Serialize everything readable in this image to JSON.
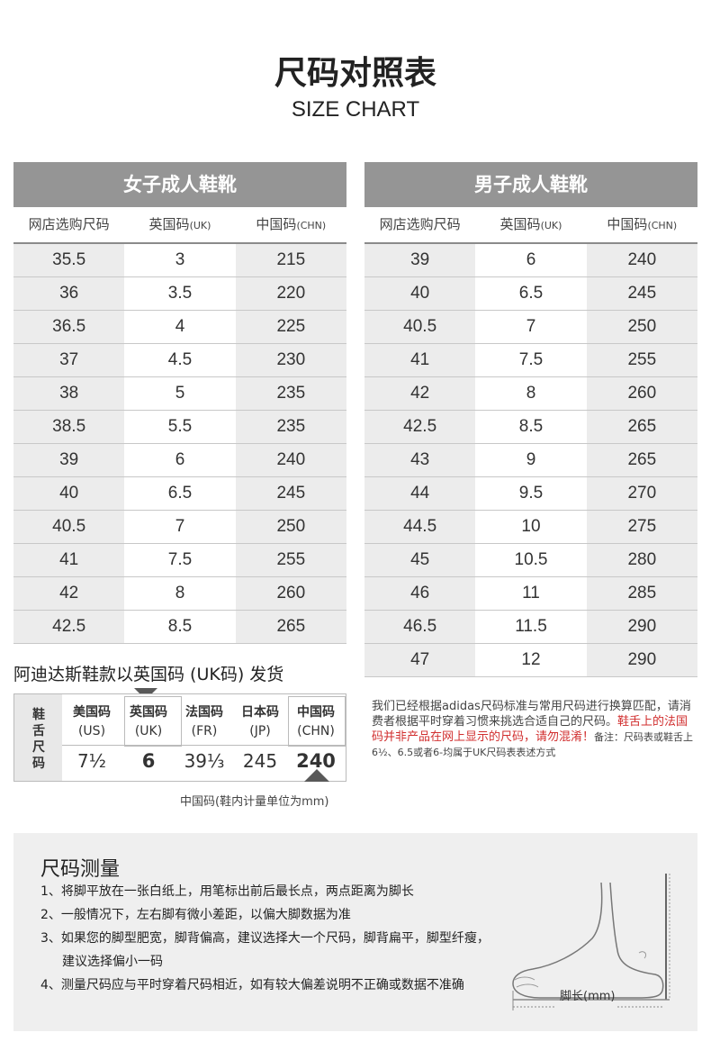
{
  "title": "尺码对照表",
  "subtitle": "SIZE CHART",
  "women": {
    "heading": "女子成人鞋靴",
    "col1": "网店选购尺码",
    "col2_main": "英国码",
    "col2_unit": "(UK)",
    "col3_main": "中国码",
    "col3_unit": "(CHN)",
    "rows": [
      [
        "35.5",
        "3",
        "215"
      ],
      [
        "36",
        "3.5",
        "220"
      ],
      [
        "36.5",
        "4",
        "225"
      ],
      [
        "37",
        "4.5",
        "230"
      ],
      [
        "38",
        "5",
        "235"
      ],
      [
        "38.5",
        "5.5",
        "235"
      ],
      [
        "39",
        "6",
        "240"
      ],
      [
        "40",
        "6.5",
        "245"
      ],
      [
        "40.5",
        "7",
        "250"
      ],
      [
        "41",
        "7.5",
        "255"
      ],
      [
        "42",
        "8",
        "260"
      ],
      [
        "42.5",
        "8.5",
        "265"
      ]
    ]
  },
  "men": {
    "heading": "男子成人鞋靴",
    "col1": "网店选购尺码",
    "col2_main": "英国码",
    "col2_unit": "(UK)",
    "col3_main": "中国码",
    "col3_unit": "(CHN)",
    "rows": [
      [
        "39",
        "6",
        "240"
      ],
      [
        "40",
        "6.5",
        "245"
      ],
      [
        "40.5",
        "7",
        "250"
      ],
      [
        "41",
        "7.5",
        "255"
      ],
      [
        "42",
        "8",
        "260"
      ],
      [
        "42.5",
        "8.5",
        "265"
      ],
      [
        "43",
        "9",
        "265"
      ],
      [
        "44",
        "9.5",
        "270"
      ],
      [
        "44.5",
        "10",
        "275"
      ],
      [
        "45",
        "10.5",
        "280"
      ],
      [
        "46",
        "11",
        "285"
      ],
      [
        "46.5",
        "11.5",
        "290"
      ],
      [
        "47",
        "12",
        "290"
      ]
    ]
  },
  "shipping_note": "阿迪达斯鞋款以英国码 (UK码) 发货",
  "tongue": {
    "side_label": "鞋舌尺码",
    "columns": [
      {
        "h1": "美国码",
        "h2": "(US)",
        "value": "7½"
      },
      {
        "h1": "英国码",
        "h2": "(UK)",
        "value": "6"
      },
      {
        "h1": "法国码",
        "h2": "(FR)",
        "value": "39⅓"
      },
      {
        "h1": "日本码",
        "h2": "(JP)",
        "value": "245"
      },
      {
        "h1": "中国码",
        "h2": "(CHN)",
        "value": "240"
      }
    ],
    "unit_note": "中国码(鞋内计量单位为mm)"
  },
  "note": {
    "text": "我们已经根据adidas尺码标准与常用尺码进行换算匹配，请消费者根据平时穿着习惯来挑选合适自己的尺码。",
    "warning": "鞋舌上的法国码并非产品在网上显示的尺码，请勿混淆！",
    "small": "备注：尺码表或鞋舌上6½、6.5或者6-均属于UK尺码表表述方式"
  },
  "measure": {
    "title": "尺码测量",
    "items": [
      "1、将脚平放在一张白纸上，用笔标出前后最长点，两点距离为脚长",
      "2、一般情况下，左右脚有微小差距，以偏大脚数据为准",
      "3、如果您的脚型肥宽，脚背偏高，建议选择大一个尺码，脚背扁平，脚型纤瘦，建议选择偏小一码",
      "4、测量尺码应与平时穿着尺码相近，如有较大偏差说明不正确或数据不准确"
    ],
    "foot_label": "脚长(mm)"
  }
}
